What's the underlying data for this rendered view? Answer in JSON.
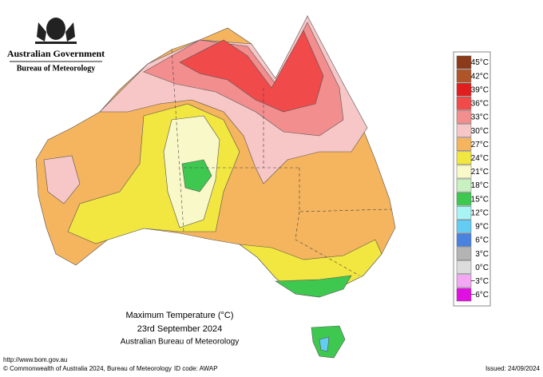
{
  "header": {
    "title": "Australian Government",
    "subtitle": "Bureau of Meteorology"
  },
  "legend": [
    {
      "label": "45°C",
      "color": "#8b3a1a"
    },
    {
      "label": "42°C",
      "color": "#b0552a"
    },
    {
      "label": "39°C",
      "color": "#e01e1e"
    },
    {
      "label": "36°C",
      "color": "#f04a4a"
    },
    {
      "label": "33°C",
      "color": "#f28e8e"
    },
    {
      "label": "30°C",
      "color": "#f7c6c6"
    },
    {
      "label": "27°C",
      "color": "#f5b45e"
    },
    {
      "label": "24°C",
      "color": "#f2e640"
    },
    {
      "label": "21°C",
      "color": "#f8f8c8"
    },
    {
      "label": "18°C",
      "color": "#c8f0c0"
    },
    {
      "label": "15°C",
      "color": "#3ec850"
    },
    {
      "label": "12°C",
      "color": "#a8f4f4"
    },
    {
      "label": "9°C",
      "color": "#64ccf2"
    },
    {
      "label": "6°C",
      "color": "#4a82e0"
    },
    {
      "label": "3°C",
      "color": "#b4b4b4"
    },
    {
      "label": "0°C",
      "color": "#dcdcdc"
    },
    {
      "label": "−3°C",
      "color": "#f4a8f4"
    },
    {
      "label": "−6°C",
      "color": "#e010e0"
    }
  ],
  "caption": {
    "title": "Maximum Temperature (°C)",
    "date": "23rd September 2024",
    "source": "Australian Bureau of Meteorology"
  },
  "footer": {
    "url": "http://www.bom.gov.au",
    "copyright": "© Commonwealth of Australia 2024, Bureau of Meteorology",
    "id": "ID code: AWAP",
    "issued": "Issued: 24/09/2024"
  }
}
